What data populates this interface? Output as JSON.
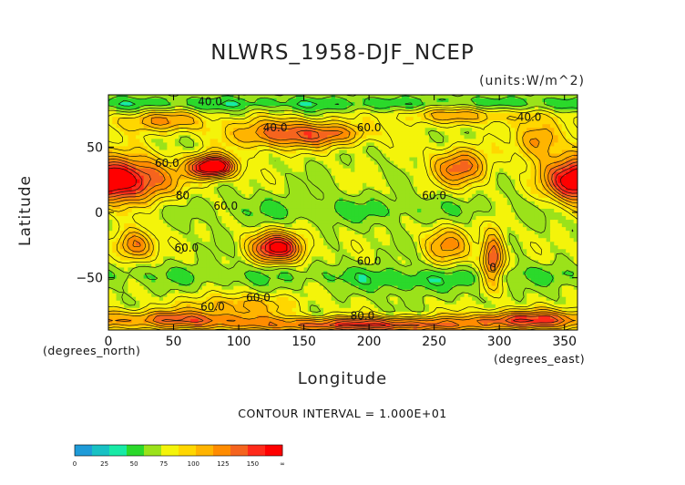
{
  "chart_data": {
    "type": "heatmap",
    "title": "NLWRS_1958-DJF_NCEP",
    "units": "(units:W/m^2)",
    "xlabel": "Longitude",
    "ylabel": "Latitude",
    "x_unit_note": "(degrees_east)",
    "y_unit_note": "(degrees_north)",
    "xlim": [
      0,
      360
    ],
    "ylim": [
      -90,
      90
    ],
    "x_ticks": [
      0,
      50,
      100,
      150,
      200,
      250,
      300,
      350
    ],
    "y_ticks": [
      -50,
      0,
      50
    ],
    "contour_note": "CONTOUR INTERVAL = 1.000E+01",
    "contour_labels": [
      {
        "lon": 78,
        "lat": 82,
        "text": "40.0"
      },
      {
        "lon": 128,
        "lat": 62,
        "text": "40.0"
      },
      {
        "lon": 200,
        "lat": 62,
        "text": "60.0"
      },
      {
        "lon": 323,
        "lat": 70,
        "text": "40.0"
      },
      {
        "lon": 45,
        "lat": 35,
        "text": "60.0"
      },
      {
        "lon": 57,
        "lat": 10,
        "text": "80"
      },
      {
        "lon": 90,
        "lat": 2,
        "text": "60.0"
      },
      {
        "lon": 250,
        "lat": 10,
        "text": "60.0"
      },
      {
        "lon": 60,
        "lat": -30,
        "text": "60.0"
      },
      {
        "lon": 200,
        "lat": -40,
        "text": "60.0"
      },
      {
        "lon": 115,
        "lat": -68,
        "text": "60.0"
      },
      {
        "lon": 80,
        "lat": -75,
        "text": "60.0"
      },
      {
        "lon": 195,
        "lat": -82,
        "text": "80.0"
      },
      {
        "lon": 295,
        "lat": -45,
        "text": "0"
      }
    ],
    "colorbar": {
      "tick_labels": [
        "0",
        "25",
        "50",
        "75",
        "100",
        "125",
        "150",
        "∞"
      ],
      "colors": [
        "#1e9bd8",
        "#18c1c4",
        "#18eaa6",
        "#2bd92b",
        "#9be21a",
        "#f4f40a",
        "#ffd700",
        "#ffb400",
        "#ff8c00",
        "#f5641e",
        "#ff2a1a",
        "#ff0000"
      ]
    }
  }
}
